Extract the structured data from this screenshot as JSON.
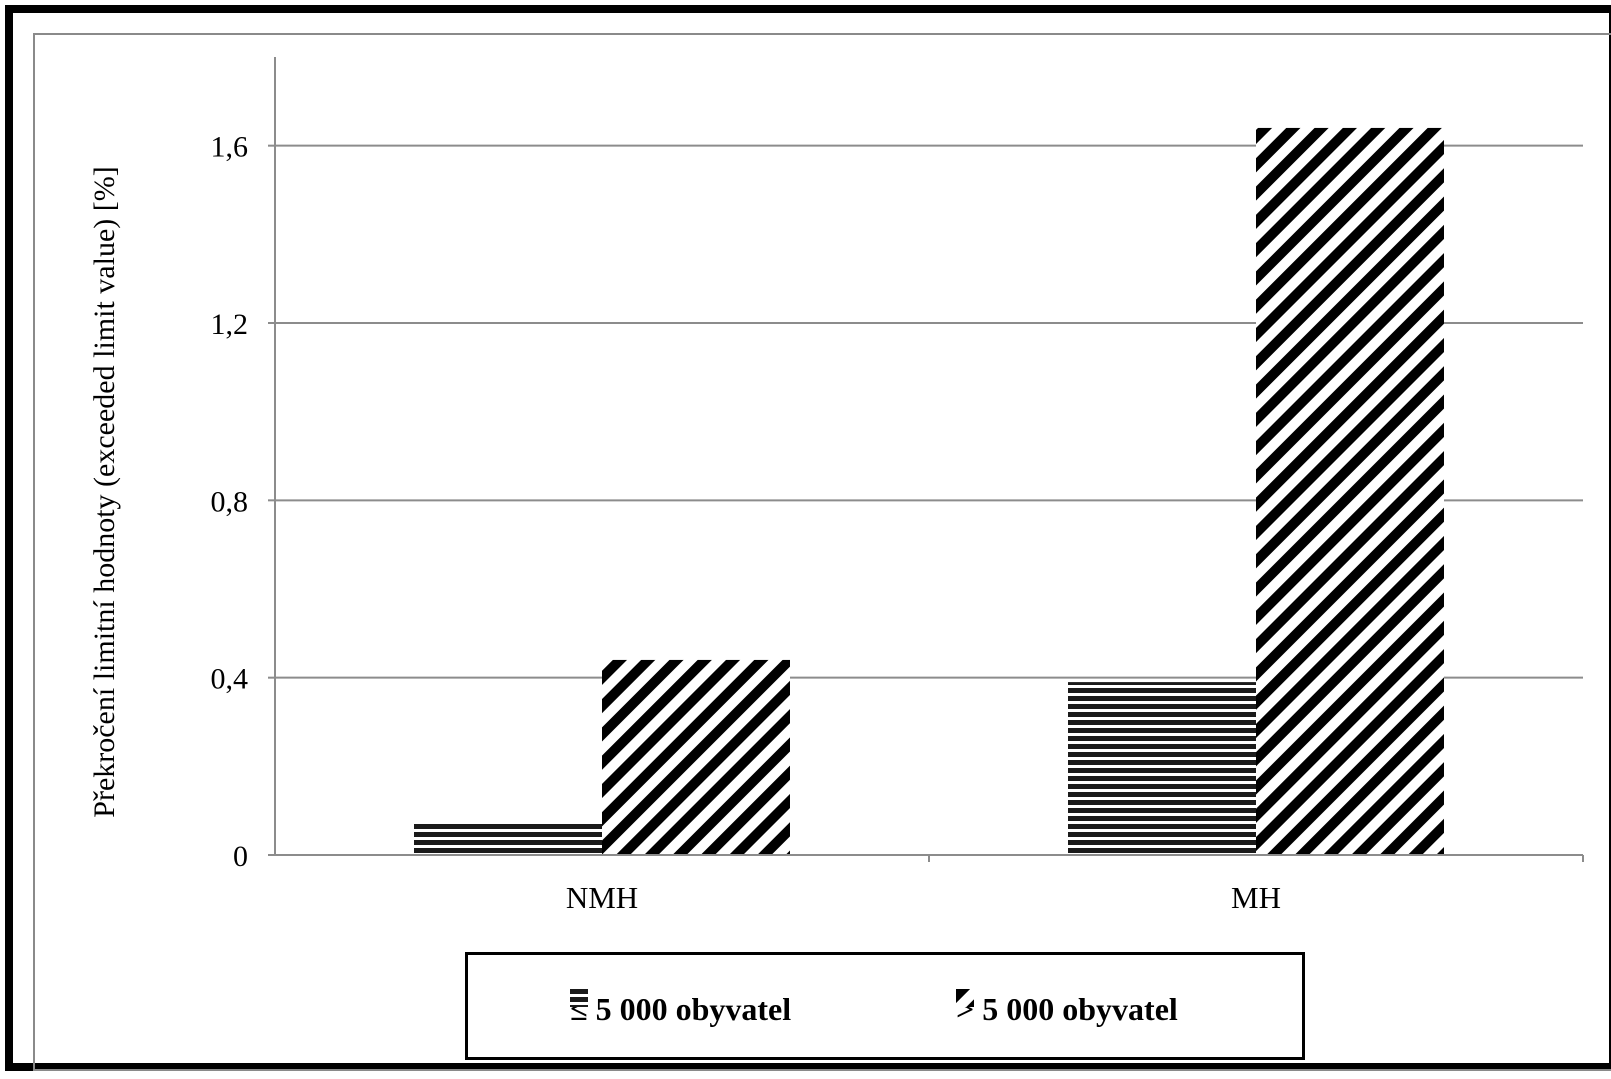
{
  "chart_data": {
    "type": "bar",
    "categories": [
      "NMH",
      "MH"
    ],
    "series": [
      {
        "name": "≤ 5 000 obyvatel",
        "values": [
          0.07,
          0.39
        ],
        "pattern": "horizontal-stripes",
        "color": "#000000"
      },
      {
        "name": "> 5 000 obyvatel",
        "values": [
          0.44,
          1.64
        ],
        "pattern": "diagonal-stripes",
        "color": "#000000"
      }
    ],
    "ylabel": "Překročení limitní hodnoty (exceeded limit value) [%]",
    "yticks": [
      "0",
      "0,4",
      "0,8",
      "1,2",
      "1,6"
    ],
    "ytick_values": [
      0,
      0.4,
      0.8,
      1.2,
      1.6
    ],
    "ylim": [
      0,
      1.8
    ],
    "grid": true,
    "legend_position": "bottom"
  }
}
